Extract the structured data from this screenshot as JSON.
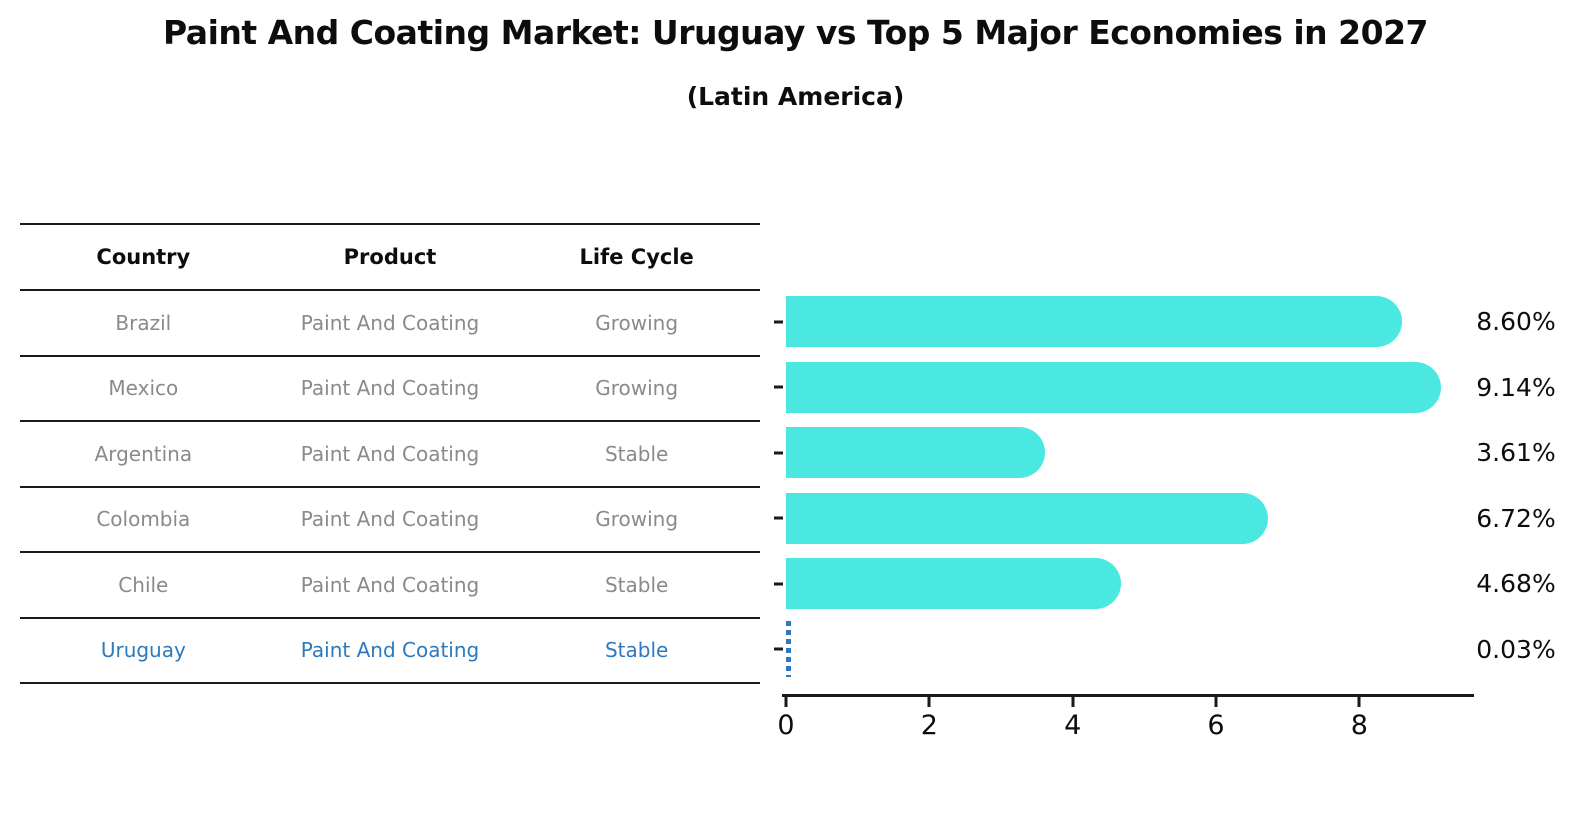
{
  "title": "Paint And Coating Market: Uruguay vs Top 5 Major Economies in 2027",
  "subtitle": "(Latin America)",
  "table": {
    "headers": [
      "Country",
      "Product",
      "Life Cycle"
    ],
    "rows": [
      {
        "country": "Brazil",
        "product": "Paint And Coating",
        "life_cycle": "Growing",
        "value_label": "8.60%",
        "highlight": false
      },
      {
        "country": "Mexico",
        "product": "Paint And Coating",
        "life_cycle": "Growing",
        "value_label": "9.14%",
        "highlight": false
      },
      {
        "country": "Argentina",
        "product": "Paint And Coating",
        "life_cycle": "Stable",
        "value_label": "3.61%",
        "highlight": false
      },
      {
        "country": "Colombia",
        "product": "Paint And Coating",
        "life_cycle": "Growing",
        "value_label": "6.72%",
        "highlight": false
      },
      {
        "country": "Chile",
        "product": "Paint And Coating",
        "life_cycle": "Stable",
        "value_label": "4.68%",
        "highlight": false
      },
      {
        "country": "Uruguay",
        "product": "Paint And Coating",
        "life_cycle": "Stable",
        "value_label": "0.03%",
        "highlight": true
      }
    ]
  },
  "chart_data": {
    "type": "bar",
    "orientation": "horizontal",
    "title": "Paint And Coating Market: Uruguay vs Top 5 Major Economies in 2027 (Latin America)",
    "categories": [
      "Brazil",
      "Mexico",
      "Argentina",
      "Colombia",
      "Chile",
      "Uruguay"
    ],
    "values": [
      8.6,
      9.14,
      3.61,
      6.72,
      4.68,
      0.03
    ],
    "value_labels": [
      "8.60%",
      "9.14%",
      "3.61%",
      "6.72%",
      "4.68%",
      "0.03%"
    ],
    "xticks": [
      0,
      2,
      4,
      6,
      8
    ],
    "xlim": [
      0,
      9.6
    ],
    "xlabel": "",
    "ylabel": "",
    "grid": false,
    "legend": "none",
    "bar_color": "#4ae8e1",
    "highlight_index": 5,
    "highlight_color": "#2e79bd"
  },
  "colors": {
    "bar": "#4ae8e1",
    "highlight": "#2e79bd",
    "rule": "#1a1a1a",
    "cell_text": "#8a8a8a",
    "heading_text": "#0d0d0d"
  }
}
